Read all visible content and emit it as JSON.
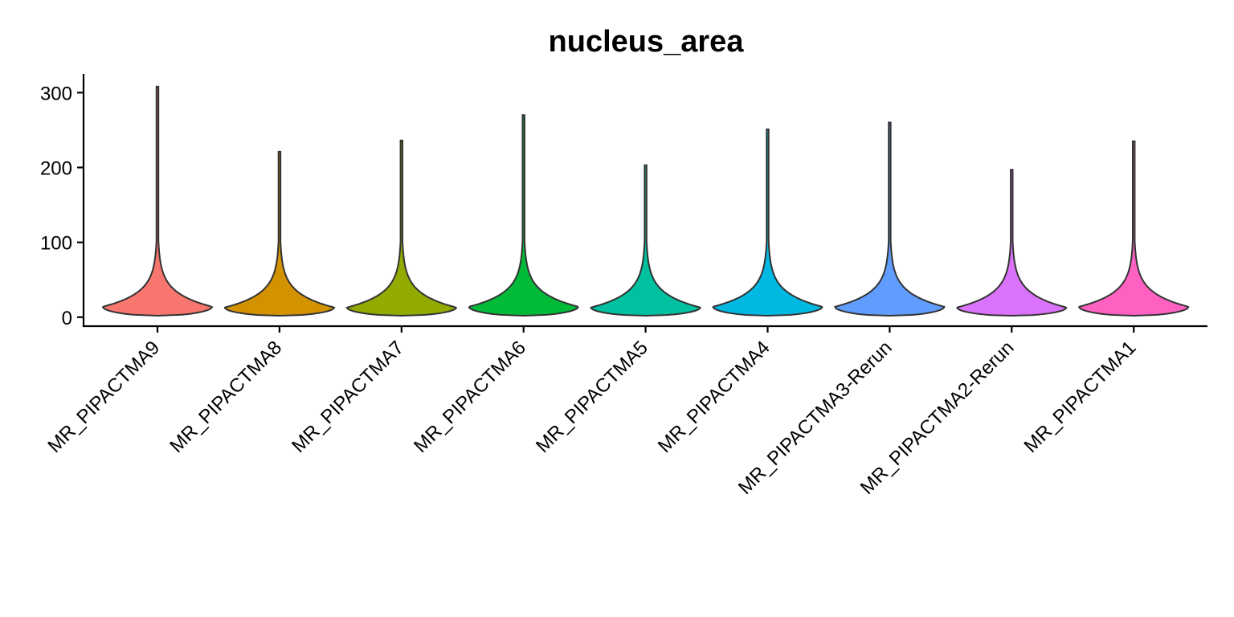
{
  "chart_data": {
    "type": "violin",
    "title": "nucleus_area",
    "xlabel": "",
    "ylabel": "",
    "ylim": [
      -12,
      325
    ],
    "yticks": [
      0,
      100,
      200,
      300
    ],
    "grid": false,
    "legend": "none",
    "categories": [
      "MR_PIPACTMA9",
      "MR_PIPACTMA8",
      "MR_PIPACTMA7",
      "MR_PIPACTMA6",
      "MR_PIPACTMA5",
      "MR_PIPACTMA4",
      "MR_PIPACTMA3-Rerun",
      "MR_PIPACTMA2-Rerun",
      "MR_PIPACTMA1"
    ],
    "colors": [
      "#F8766D",
      "#D39200",
      "#93AA00",
      "#00BA38",
      "#00C19F",
      "#00B9E3",
      "#619CFF",
      "#DB72FB",
      "#FF61C3"
    ],
    "series": [
      {
        "category": "MR_PIPACTMA9",
        "min": 2,
        "max": 308,
        "peak": 14
      },
      {
        "category": "MR_PIPACTMA8",
        "min": 2,
        "max": 221,
        "peak": 13
      },
      {
        "category": "MR_PIPACTMA7",
        "min": 2,
        "max": 236,
        "peak": 13
      },
      {
        "category": "MR_PIPACTMA6",
        "min": 2,
        "max": 270,
        "peak": 14
      },
      {
        "category": "MR_PIPACTMA5",
        "min": 2,
        "max": 203,
        "peak": 13
      },
      {
        "category": "MR_PIPACTMA4",
        "min": 2,
        "max": 251,
        "peak": 14
      },
      {
        "category": "MR_PIPACTMA3-Rerun",
        "min": 2,
        "max": 260,
        "peak": 14
      },
      {
        "category": "MR_PIPACTMA2-Rerun",
        "min": 2,
        "max": 197,
        "peak": 13
      },
      {
        "category": "MR_PIPACTMA1",
        "min": 2,
        "max": 235,
        "peak": 14
      }
    ]
  }
}
